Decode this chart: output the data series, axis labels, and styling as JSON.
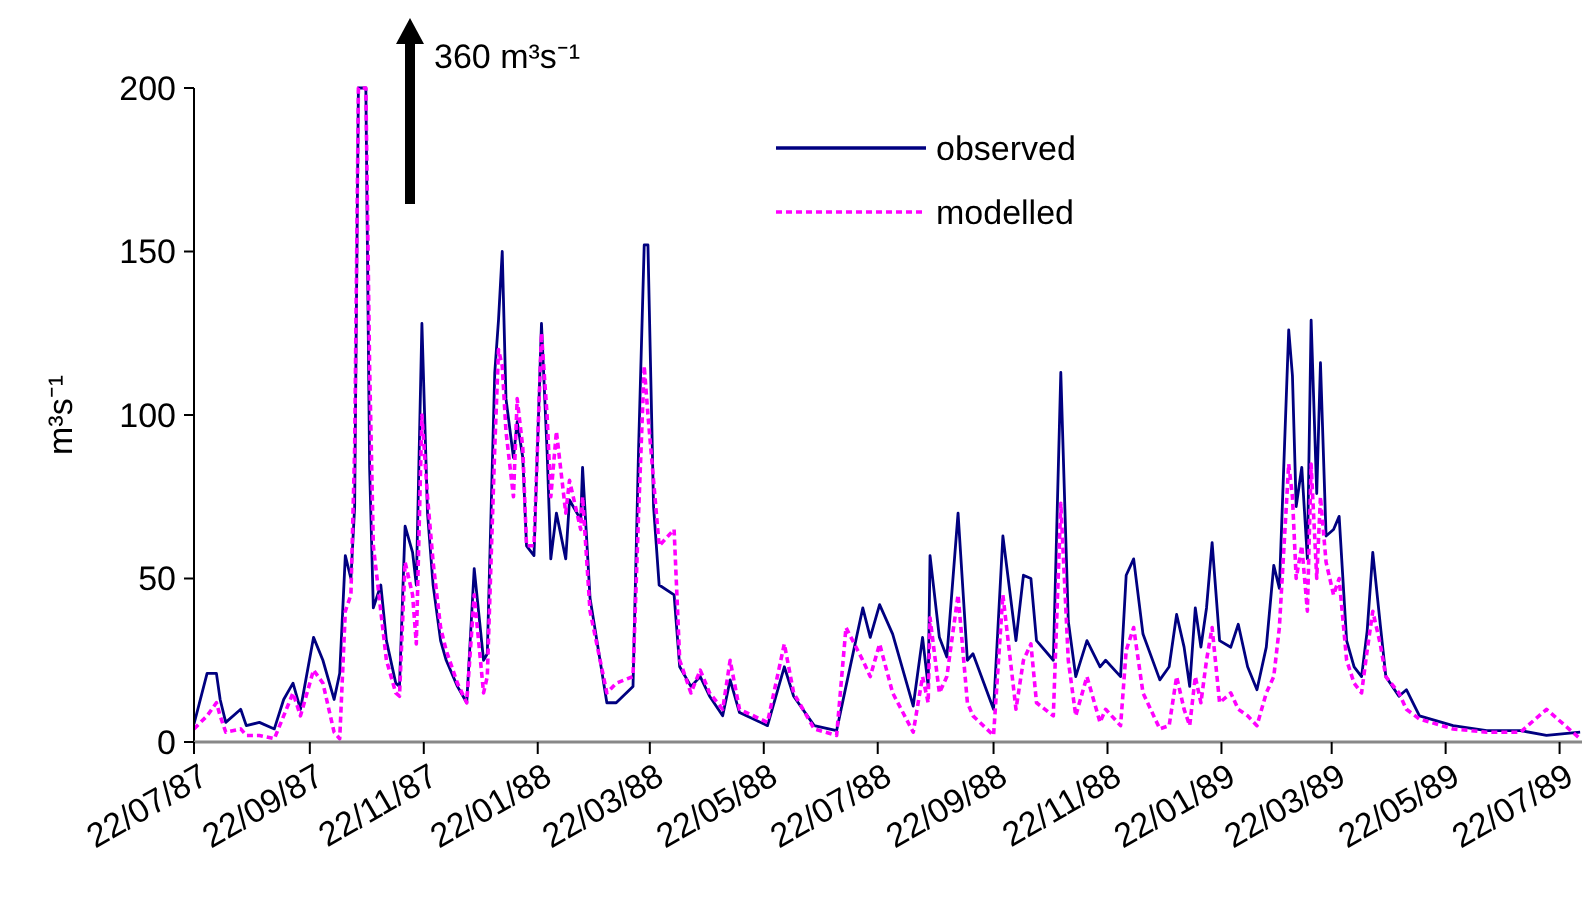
{
  "chart_data": {
    "type": "line",
    "ylabel": "m³s⁻¹",
    "annotations": [
      "360 m³s⁻¹"
    ],
    "legend": "top",
    "grid": false,
    "xlim": [
      "1987-07-22",
      "1989-08-03"
    ],
    "ylim": [
      0,
      200
    ],
    "yticks": [
      0,
      50,
      100,
      150,
      200
    ],
    "xticks": [
      {
        "value": "1987-07-22",
        "label": "22/07/87"
      },
      {
        "value": "1987-09-22",
        "label": "22/09/87"
      },
      {
        "value": "1987-11-22",
        "label": "22/11/87"
      },
      {
        "value": "1988-01-22",
        "label": "22/01/88"
      },
      {
        "value": "1988-03-22",
        "label": "22/03/88"
      },
      {
        "value": "1988-05-22",
        "label": "22/05/88"
      },
      {
        "value": "1988-07-22",
        "label": "22/07/88"
      },
      {
        "value": "1988-09-22",
        "label": "22/09/88"
      },
      {
        "value": "1988-11-22",
        "label": "22/11/88"
      },
      {
        "value": "1989-01-22",
        "label": "22/01/89"
      },
      {
        "value": "1989-03-22",
        "label": "22/03/89"
      },
      {
        "value": "1989-05-22",
        "label": "22/05/89"
      },
      {
        "value": "1989-07-22",
        "label": "22/07/89"
      }
    ],
    "x": [
      "1987-07-22",
      "1987-07-29",
      "1987-08-03",
      "1987-08-05",
      "1987-08-08",
      "1987-08-16",
      "1987-08-19",
      "1987-08-26",
      "1987-09-03",
      "1987-09-08",
      "1987-09-13",
      "1987-09-17",
      "1987-09-24",
      "1987-09-29",
      "1987-10-05",
      "1987-10-08",
      "1987-10-11",
      "1987-10-14",
      "1987-10-16",
      "1987-10-18",
      "1987-10-22",
      "1987-10-24",
      "1987-10-26",
      "1987-10-30",
      "1987-11-02",
      "1987-11-07",
      "1987-11-09",
      "1987-11-12",
      "1987-11-16",
      "1987-11-18",
      "1987-11-21",
      "1987-11-24",
      "1987-11-27",
      "1987-12-01",
      "1987-12-04",
      "1987-12-10",
      "1987-12-15",
      "1987-12-19",
      "1987-12-24",
      "1987-12-26",
      "1987-12-30",
      "1988-01-01",
      "1988-01-03",
      "1988-01-05",
      "1988-01-09",
      "1988-01-11",
      "1988-01-14",
      "1988-01-16",
      "1988-01-20",
      "1988-01-24",
      "1988-01-27",
      "1988-01-29",
      "1988-02-01",
      "1988-02-06",
      "1988-02-08",
      "1988-02-14",
      "1988-02-15",
      "1988-02-19",
      "1988-02-28",
      "1988-03-04",
      "1988-03-13",
      "1988-03-16",
      "1988-03-19",
      "1988-03-21",
      "1988-03-24",
      "1988-03-27",
      "1988-04-04",
      "1988-04-07",
      "1988-04-13",
      "1988-04-18",
      "1988-04-23",
      "1988-04-30",
      "1988-05-04",
      "1988-05-09",
      "1988-05-24",
      "1988-06-02",
      "1988-06-07",
      "1988-06-18",
      "1988-06-30",
      "1988-07-05",
      "1988-07-14",
      "1988-07-18",
      "1988-07-23",
      "1988-07-30",
      "1988-08-10",
      "1988-08-15",
      "1988-08-18",
      "1988-08-19",
      "1988-08-24",
      "1988-08-28",
      "1988-09-03",
      "1988-09-08",
      "1988-09-11",
      "1988-09-22",
      "1988-09-27",
      "1988-10-04",
      "1988-10-08",
      "1988-10-12",
      "1988-10-15",
      "1988-10-24",
      "1988-10-28",
      "1988-11-01",
      "1988-11-05",
      "1988-11-11",
      "1988-11-18",
      "1988-11-21",
      "1988-11-29",
      "1988-12-02",
      "1988-12-06",
      "1988-12-11",
      "1988-12-20",
      "1988-12-25",
      "1988-12-29",
      "1989-01-02",
      "1989-01-05",
      "1989-01-08",
      "1989-01-11",
      "1989-01-14",
      "1989-01-17",
      "1989-01-21",
      "1989-01-27",
      "1989-01-31",
      "1989-02-05",
      "1989-02-10",
      "1989-02-15",
      "1989-02-19",
      "1989-02-22",
      "1989-02-27",
      "1989-03-01",
      "1989-03-03",
      "1989-03-06",
      "1989-03-09",
      "1989-03-11",
      "1989-03-14",
      "1989-03-16",
      "1989-03-19",
      "1989-03-23",
      "1989-03-26",
      "1989-03-30",
      "1989-04-03",
      "1989-04-07",
      "1989-04-10",
      "1989-04-13",
      "1989-04-17",
      "1989-04-20",
      "1989-04-27",
      "1989-05-01",
      "1989-05-08",
      "1989-05-26",
      "1989-06-13",
      "1989-07-01",
      "1989-07-15",
      "1989-08-02"
    ],
    "series": [
      {
        "name": "observed",
        "color": "#000080",
        "line_style": "solid",
        "values": [
          5.5,
          21,
          21,
          13,
          6,
          10,
          5,
          6,
          4,
          13,
          18,
          10,
          32,
          25,
          13,
          21,
          57,
          50,
          72,
          200,
          200,
          84,
          41,
          48,
          31,
          18,
          17,
          66,
          58,
          48,
          128,
          70,
          48,
          31,
          25,
          17,
          12,
          53,
          25,
          27,
          113,
          129,
          150,
          105,
          87,
          98,
          87,
          60,
          57,
          128,
          89,
          56,
          70,
          56,
          74,
          68,
          84,
          44,
          12,
          12,
          17,
          90,
          152,
          152,
          72,
          48,
          45,
          23,
          17,
          20,
          14,
          8,
          19,
          9,
          5,
          23,
          14,
          5,
          3.5,
          17,
          41,
          32,
          42,
          33,
          11,
          32,
          17,
          57,
          32,
          26,
          70,
          25,
          27,
          10,
          63,
          31,
          51,
          50,
          31,
          25,
          113,
          37,
          20,
          31,
          23,
          25,
          20,
          51,
          56,
          33,
          19,
          23,
          39,
          29,
          17,
          41,
          29,
          41,
          61,
          31,
          29,
          36,
          23,
          16,
          29,
          54,
          47,
          126,
          112,
          72,
          84,
          56,
          129,
          76,
          116,
          63,
          65,
          69,
          31,
          23,
          20,
          34,
          58,
          36,
          20,
          14,
          16,
          8,
          5,
          3.5,
          3.5,
          2,
          3
        ]
      },
      {
        "name": "modelled",
        "color": "#ff00ff",
        "line_style": "dashed",
        "values": [
          4,
          8,
          12,
          8,
          3,
          4,
          2,
          2,
          1,
          8,
          15,
          8,
          22,
          18,
          3,
          1,
          40,
          45,
          90,
          200,
          200,
          115,
          60,
          40,
          25,
          15,
          14,
          55,
          45,
          30,
          100,
          75,
          55,
          35,
          28,
          18,
          12,
          45,
          15,
          20,
          90,
          120,
          115,
          95,
          75,
          105,
          90,
          60,
          60,
          125,
          100,
          75,
          95,
          70,
          80,
          65,
          75,
          40,
          15,
          18,
          20,
          70,
          115,
          100,
          80,
          60,
          65,
          25,
          15,
          22,
          15,
          10,
          25,
          10,
          6,
          30,
          15,
          4,
          2,
          35,
          25,
          20,
          30,
          15,
          3,
          20,
          12,
          38,
          15,
          20,
          45,
          12,
          8,
          2,
          45,
          10,
          25,
          30,
          12,
          8,
          73,
          25,
          8,
          20,
          6,
          10,
          5,
          28,
          35,
          15,
          4,
          5,
          20,
          10,
          5,
          20,
          12,
          25,
          35,
          12,
          15,
          10,
          8,
          5,
          15,
          20,
          35,
          85,
          75,
          50,
          60,
          40,
          85,
          50,
          75,
          55,
          45,
          50,
          25,
          18,
          15,
          28,
          40,
          30,
          20,
          15,
          10,
          7,
          4,
          3,
          3,
          10,
          1
        ]
      }
    ]
  }
}
